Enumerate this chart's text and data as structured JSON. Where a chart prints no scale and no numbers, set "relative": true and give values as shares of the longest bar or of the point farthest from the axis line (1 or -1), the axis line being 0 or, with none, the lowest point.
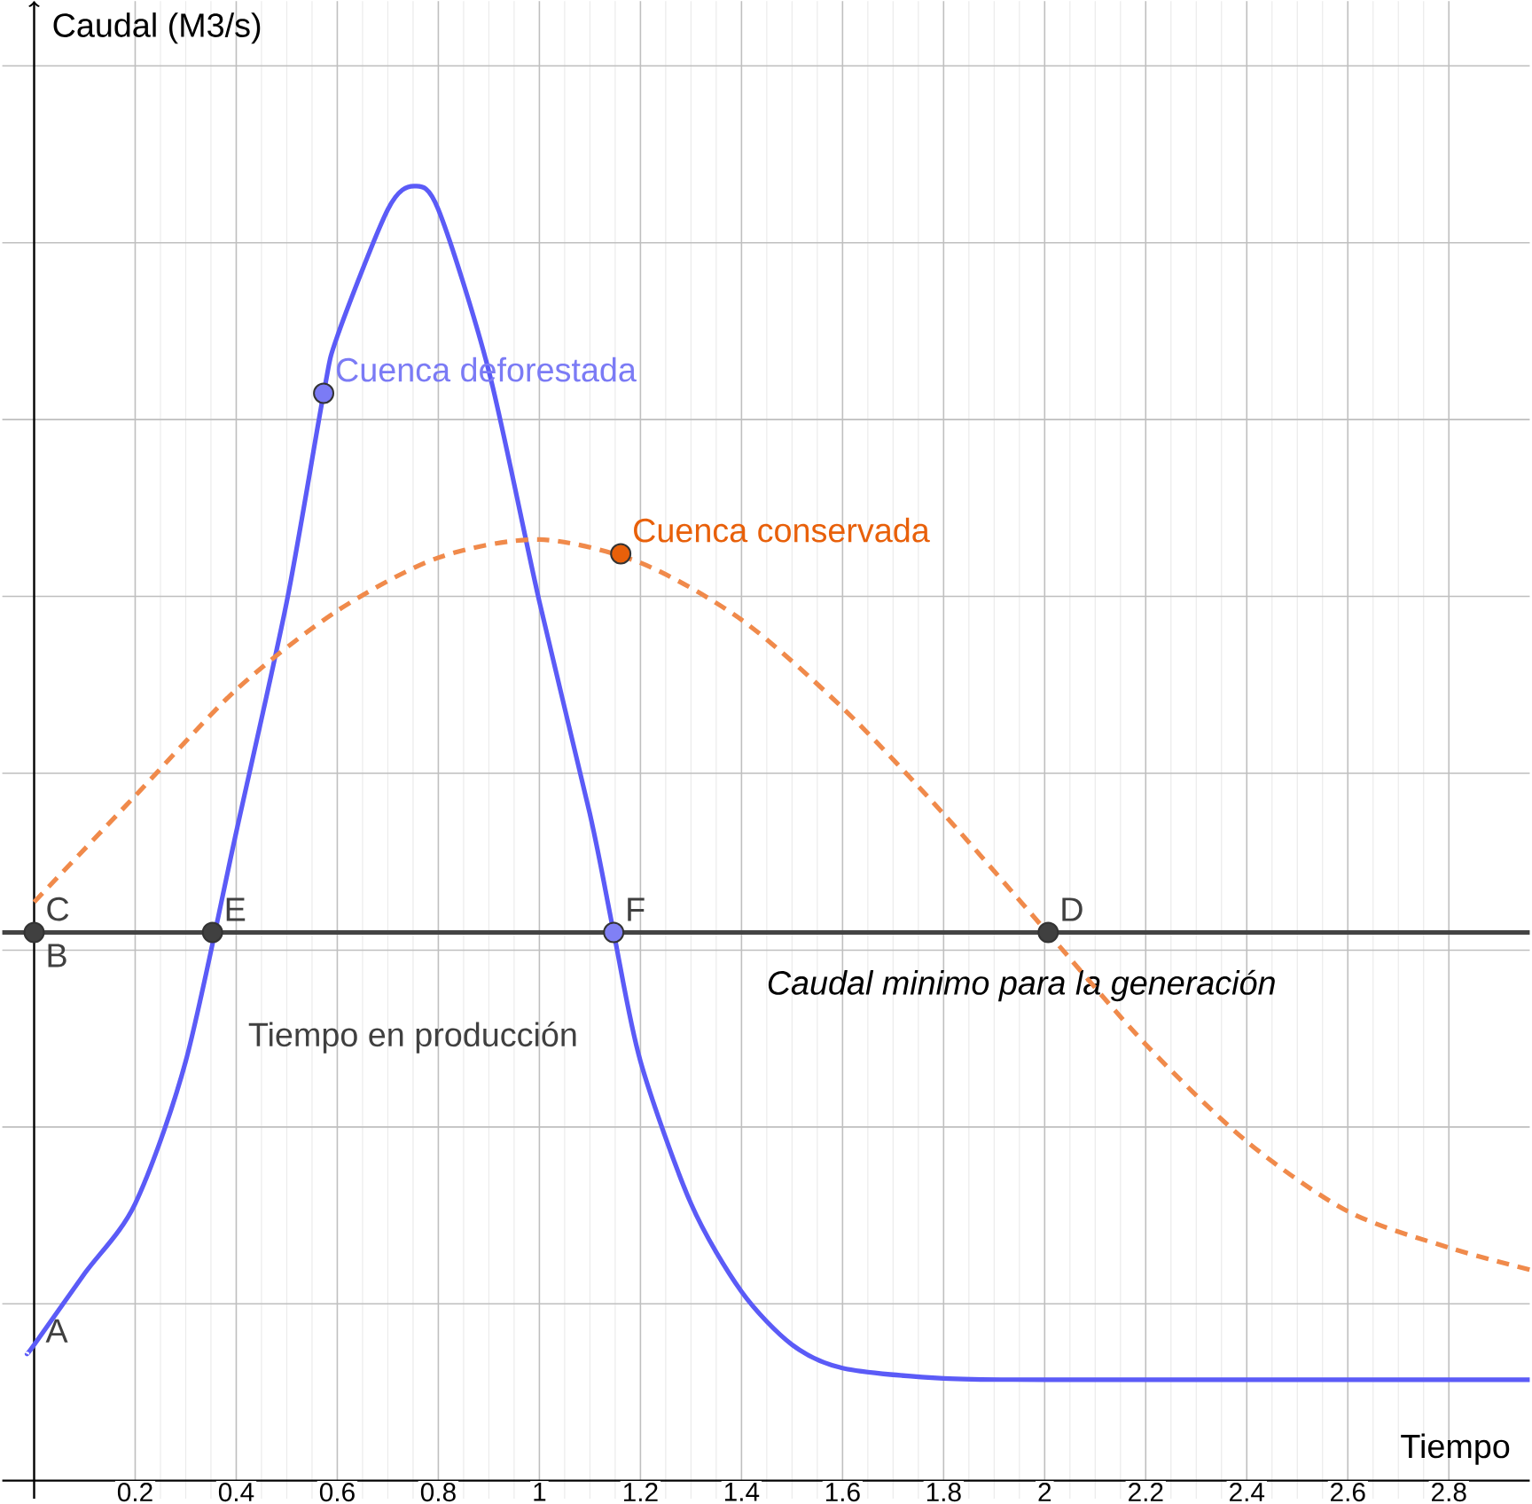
{
  "chart_data": {
    "type": "line",
    "relative": true,
    "xlabel": "Tiempo",
    "ylabel": "Caudal (M3/s)",
    "xlim": [
      -0.063,
      2.96
    ],
    "xticks": [
      0.2,
      0.4,
      0.6,
      0.8,
      1,
      1.2,
      1.4,
      1.6,
      1.8,
      2,
      2.2,
      2.4,
      2.6,
      2.8
    ],
    "grid": true,
    "series": [
      {
        "color": "#5b5bf7",
        "line_style": "solid",
        "x": [
          -0.014,
          0.0,
          0.1,
          0.2,
          0.3,
          0.353,
          0.4,
          0.5,
          0.573,
          0.6,
          0.7,
          0.752,
          0.8,
          0.9,
          1.0,
          1.1,
          1.147,
          1.2,
          1.3,
          1.4,
          1.5,
          1.6,
          1.8,
          2.0,
          2.5,
          2.96
        ],
        "values": [
          0.098,
          0.105,
          0.16,
          0.214,
          0.324,
          null,
          0.501,
          0.679,
          0.84,
          0.884,
          0.982,
          1,
          0.982,
          0.857,
          0.679,
          0.515,
          0.4235,
          0.324,
          0.214,
          0.146,
          0.105,
          0.087,
          0.079,
          0.078,
          0.078,
          0.078
        ]
      },
      {
        "color": "#f08a4b",
        "line_style": "dashed",
        "x": [
          0.0,
          0.2,
          0.4,
          0.6,
          0.8,
          1.0,
          1.2,
          1.4,
          1.6,
          1.8,
          2.0,
          2.2,
          2.4,
          2.6,
          2.8,
          2.96
        ],
        "values": [
          0.447,
          0.529,
          0.611,
          0.672,
          0.713,
          0.727,
          0.709,
          0.665,
          0.597,
          0.515,
          0.426,
          0.337,
          0.262,
          0.208,
          0.18,
          0.163
        ]
      },
      {
        "type": "scatter",
        "name": "Cuenca deforestada",
        "color": "#7b7bf5",
        "x": [
          0.573
        ],
        "values": [
          0.84
        ]
      },
      {
        "type": "scatter",
        "name": "Cuenca conservada",
        "color": "#e8600a",
        "x": [
          1.161
        ],
        "values": [
          0.716
        ]
      },
      {
        "type": "scatter",
        "color": "#404040",
        "x": [
          0.0,
          0.353,
          2.007
        ],
        "values": [
          0.4235,
          0.4235,
          0.4235
        ]
      },
      {
        "type": "scatter",
        "color": "#8080f5",
        "x": [
          1.147
        ],
        "values": [
          0.4235
        ]
      }
    ],
    "ref_lines": [
      {
        "axis": "y",
        "value": 0.4235,
        "label": "Caudal minimo para la generación",
        "color": "#444444"
      }
    ],
    "annotations": [
      {
        "text": "A",
        "x": 0.0,
        "y": 0.098
      },
      {
        "text": "B",
        "x": 0.0,
        "y": 0.4235
      },
      {
        "text": "C",
        "x": 0.0,
        "y": 0.4235
      },
      {
        "text": "E",
        "x": 0.353,
        "y": 0.4235
      },
      {
        "text": "F",
        "x": 1.147,
        "y": 0.4235
      },
      {
        "text": "D",
        "x": 2.007,
        "y": 0.4235
      },
      {
        "text": "Tiempo en producción",
        "x": 0.75,
        "y": 0.4235
      }
    ]
  }
}
